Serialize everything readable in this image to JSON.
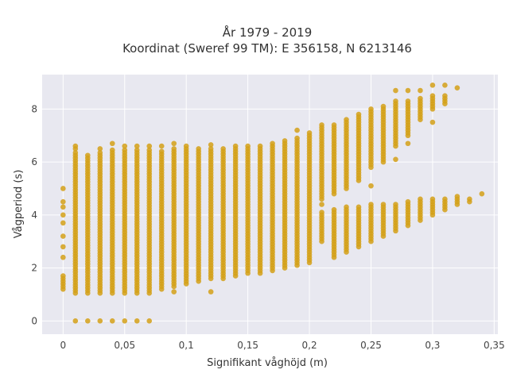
{
  "chart_data": {
    "type": "scatter",
    "title": "År 1979 - 2019",
    "subtitle": "Koordinat (Sweref 99 TM): E 356158, N 6213146",
    "xlabel": "Signifikant våghöjd (m)",
    "ylabel": "Vågperiod (s)",
    "xlim": [
      -0.017,
      0.353
    ],
    "ylim": [
      -0.5,
      9.3
    ],
    "x_ticks": [
      0,
      0.05,
      0.1,
      0.15,
      0.2,
      0.25,
      0.3,
      0.35
    ],
    "x_tick_labels": [
      "0",
      "0,05",
      "0,1",
      "0,15",
      "0,2",
      "0,25",
      "0,3",
      "0,35"
    ],
    "y_ticks": [
      0,
      2,
      4,
      6,
      8
    ],
    "y_tick_labels": [
      "0",
      "2",
      "4",
      "6",
      "8"
    ],
    "grid": true,
    "marker_color": "#d4a017",
    "background_color": "#e8e8f0",
    "series": [
      {
        "columns": [
          {
            "x": 0.0,
            "ymin": 1.2,
            "ymax": 1.7,
            "extra": [
              2.4,
              2.8,
              3.2,
              3.7,
              4.0,
              4.3,
              4.5,
              5.0
            ]
          },
          {
            "x": 0.01,
            "ymin": 1.05,
            "ymax": 6.3,
            "extra": [
              0,
              6.5,
              6.6
            ]
          },
          {
            "x": 0.02,
            "ymin": 1.05,
            "ymax": 6.2,
            "extra": [
              0
            ]
          },
          {
            "x": 0.03,
            "ymin": 1.05,
            "ymax": 6.3,
            "extra": [
              0,
              6.5
            ]
          },
          {
            "x": 0.04,
            "ymin": 1.05,
            "ymax": 6.4,
            "extra": [
              0,
              6.7
            ]
          },
          {
            "x": 0.05,
            "ymin": 1.05,
            "ymax": 6.4,
            "extra": [
              0,
              6.6
            ]
          },
          {
            "x": 0.06,
            "ymin": 1.05,
            "ymax": 6.4,
            "extra": [
              0,
              6.6
            ]
          },
          {
            "x": 0.07,
            "ymin": 1.05,
            "ymax": 6.4,
            "extra": [
              0,
              6.6
            ]
          },
          {
            "x": 0.08,
            "ymin": 1.2,
            "ymax": 6.4,
            "extra": [
              6.6
            ]
          },
          {
            "x": 0.09,
            "ymin": 1.3,
            "ymax": 6.5,
            "extra": [
              1.1,
              6.7
            ]
          },
          {
            "x": 0.1,
            "ymin": 1.4,
            "ymax": 6.5,
            "extra": [
              6.6
            ]
          },
          {
            "x": 0.11,
            "ymin": 1.5,
            "ymax": 6.5
          },
          {
            "x": 0.12,
            "ymin": 1.6,
            "ymax": 6.5,
            "extra": [
              1.1,
              6.65
            ]
          },
          {
            "x": 0.13,
            "ymin": 1.6,
            "ymax": 6.55
          },
          {
            "x": 0.14,
            "ymin": 1.7,
            "ymax": 6.6
          },
          {
            "x": 0.15,
            "ymin": 1.8,
            "ymax": 6.6
          },
          {
            "x": 0.16,
            "ymin": 1.8,
            "ymax": 6.6
          },
          {
            "x": 0.17,
            "ymin": 1.9,
            "ymax": 6.7
          },
          {
            "x": 0.18,
            "ymin": 2.0,
            "ymax": 6.8
          },
          {
            "x": 0.19,
            "ymin": 2.1,
            "ymax": 6.9,
            "extra": [
              7.2
            ]
          },
          {
            "x": 0.2,
            "ymin": 2.2,
            "ymax": 7.1
          },
          {
            "x": 0.21,
            "ymin": 3.0,
            "ymax": 4.1,
            "extra": [
              4.4
            ]
          },
          {
            "x": 0.21,
            "ymin": 4.6,
            "ymax": 7.3,
            "extra": [
              7.4
            ]
          },
          {
            "x": 0.22,
            "ymin": 2.4,
            "ymax": 4.2
          },
          {
            "x": 0.22,
            "ymin": 4.8,
            "ymax": 7.4
          },
          {
            "x": 0.23,
            "ymin": 2.6,
            "ymax": 4.3
          },
          {
            "x": 0.23,
            "ymin": 5.0,
            "ymax": 7.6
          },
          {
            "x": 0.24,
            "ymin": 2.8,
            "ymax": 4.3
          },
          {
            "x": 0.24,
            "ymin": 5.3,
            "ymax": 7.8
          },
          {
            "x": 0.25,
            "ymin": 3.0,
            "ymax": 4.4
          },
          {
            "x": 0.25,
            "ymin": 5.8,
            "ymax": 8.0,
            "extra": [
              5.1
            ]
          },
          {
            "x": 0.26,
            "ymin": 3.2,
            "ymax": 4.4
          },
          {
            "x": 0.26,
            "ymin": 6.0,
            "ymax": 8.1
          },
          {
            "x": 0.27,
            "ymin": 3.4,
            "ymax": 4.4
          },
          {
            "x": 0.27,
            "ymin": 6.6,
            "ymax": 8.3,
            "extra": [
              6.1,
              8.7
            ]
          },
          {
            "x": 0.28,
            "ymin": 3.6,
            "ymax": 4.5
          },
          {
            "x": 0.28,
            "ymin": 7.0,
            "ymax": 8.3,
            "extra": [
              6.7,
              8.7
            ]
          },
          {
            "x": 0.29,
            "ymin": 3.8,
            "ymax": 4.6
          },
          {
            "x": 0.29,
            "ymin": 7.6,
            "ymax": 8.4,
            "extra": [
              8.7
            ]
          },
          {
            "x": 0.3,
            "ymin": 4.0,
            "ymax": 4.6
          },
          {
            "x": 0.3,
            "ymin": 8.0,
            "ymax": 8.5,
            "extra": [
              7.5,
              8.9
            ]
          },
          {
            "x": 0.31,
            "ymin": 4.2,
            "ymax": 4.6
          },
          {
            "x": 0.31,
            "ymin": 8.3,
            "ymax": 8.5,
            "extra": [
              8.2,
              8.9
            ]
          },
          {
            "x": 0.32,
            "ymin": 4.4,
            "ymax": 4.7,
            "extra": [
              8.8
            ]
          },
          {
            "x": 0.33,
            "ymin": 4.5,
            "ymax": 4.6
          },
          {
            "x": 0.34,
            "ymin": 4.8,
            "ymax": 4.8
          }
        ]
      }
    ]
  }
}
